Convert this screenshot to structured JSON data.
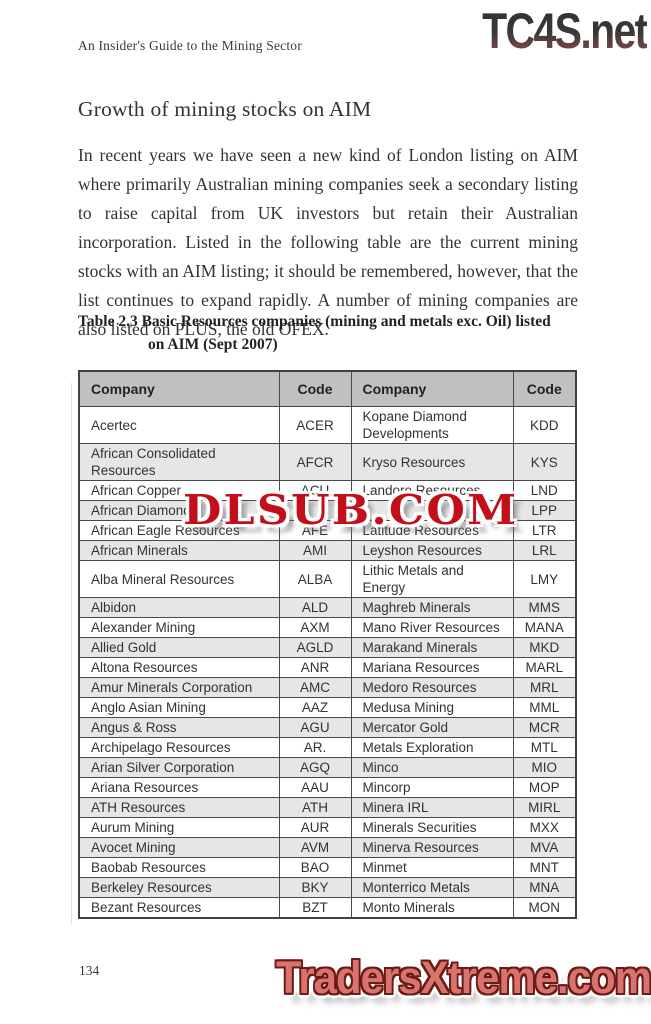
{
  "header": {
    "running_title": "An Insider's Guide to the Mining Sector"
  },
  "watermarks": {
    "top_right": "TC4S.net",
    "middle": "DLSUB.COM",
    "bottom": "TradersXtreme.com"
  },
  "heading": "Growth of mining stocks on AIM",
  "paragraph": "In recent years we have seen a new kind of London listing on AIM where primarily Australian mining companies seek a secondary listing to raise capital from UK investors but retain their Australian incorporation. Listed in the following table are the current mining stocks with an AIM listing; it should be remembered, however, that the list continues to expand rapidly. A number of mining companies are also listed on PLUS, the old OFEX.",
  "table": {
    "caption_line1": "Table 2.3 Basic Resources companies (mining and metals exc. Oil) listed",
    "caption_line2": "on AIM (Sept 2007)",
    "columns": [
      "Company",
      "Code",
      "Company",
      "Code"
    ],
    "rows": [
      [
        "Acertec",
        "ACER",
        "Kopane Diamond Developments",
        "KDD"
      ],
      [
        "African Consolidated Resources",
        "AFCR",
        "Kryso Resources",
        "KYS"
      ],
      [
        "African Copper",
        "ACU",
        "Landore Resources",
        "LND"
      ],
      [
        "African Diamonds",
        "",
        "",
        "LPP"
      ],
      [
        "African Eagle Resources",
        "AFE",
        "Latitude Resources",
        "LTR"
      ],
      [
        "African Minerals",
        "AMI",
        "Leyshon Resources",
        "LRL"
      ],
      [
        "Alba Mineral Resources",
        "ALBA",
        "Lithic Metals and Energy",
        "LMY"
      ],
      [
        "Albidon",
        "ALD",
        "Maghreb Minerals",
        "MMS"
      ],
      [
        "Alexander Mining",
        "AXM",
        "Mano River Resources",
        "MANA"
      ],
      [
        "Allied Gold",
        "AGLD",
        "Marakand Minerals",
        "MKD"
      ],
      [
        "Altona Resources",
        "ANR",
        "Mariana Resources",
        "MARL"
      ],
      [
        "Amur Minerals Corporation",
        "AMC",
        "Medoro Resources",
        "MRL"
      ],
      [
        "Anglo Asian Mining",
        "AAZ",
        "Medusa Mining",
        "MML"
      ],
      [
        "Angus & Ross",
        "AGU",
        "Mercator Gold",
        "MCR"
      ],
      [
        "Archipelago Resources",
        "AR.",
        "Metals Exploration",
        "MTL"
      ],
      [
        "Arian Silver Corporation",
        "AGQ",
        "Minco",
        "MIO"
      ],
      [
        "Ariana Resources",
        "AAU",
        "Mincorp",
        "MOP"
      ],
      [
        "ATH Resources",
        "ATH",
        "Minera IRL",
        "MIRL"
      ],
      [
        "Aurum Mining",
        "AUR",
        "Minerals Securities",
        "MXX"
      ],
      [
        "Avocet Mining",
        "AVM",
        "Minerva Resources",
        "MVA"
      ],
      [
        "Baobab Resources",
        "BAO",
        "Minmet",
        "MNT"
      ],
      [
        "Berkeley Resources",
        "BKY",
        "Monterrico Metals",
        "MNA"
      ],
      [
        "Bezant Resources",
        "BZT",
        "Monto Minerals",
        "MON"
      ]
    ]
  },
  "footer": {
    "page_number": "134"
  },
  "colors": {
    "watermark_red": "#c20f1a",
    "tc4s_dark": "#383838",
    "tc4s_maroon": "#8d5858",
    "traders_fill": "#d9736e",
    "traders_outline": "#6b1b18",
    "table_header_bg": "#c0c0c0",
    "table_alt_row_bg": "#e6e6e6",
    "table_border": "#414141",
    "text": "#333333"
  }
}
